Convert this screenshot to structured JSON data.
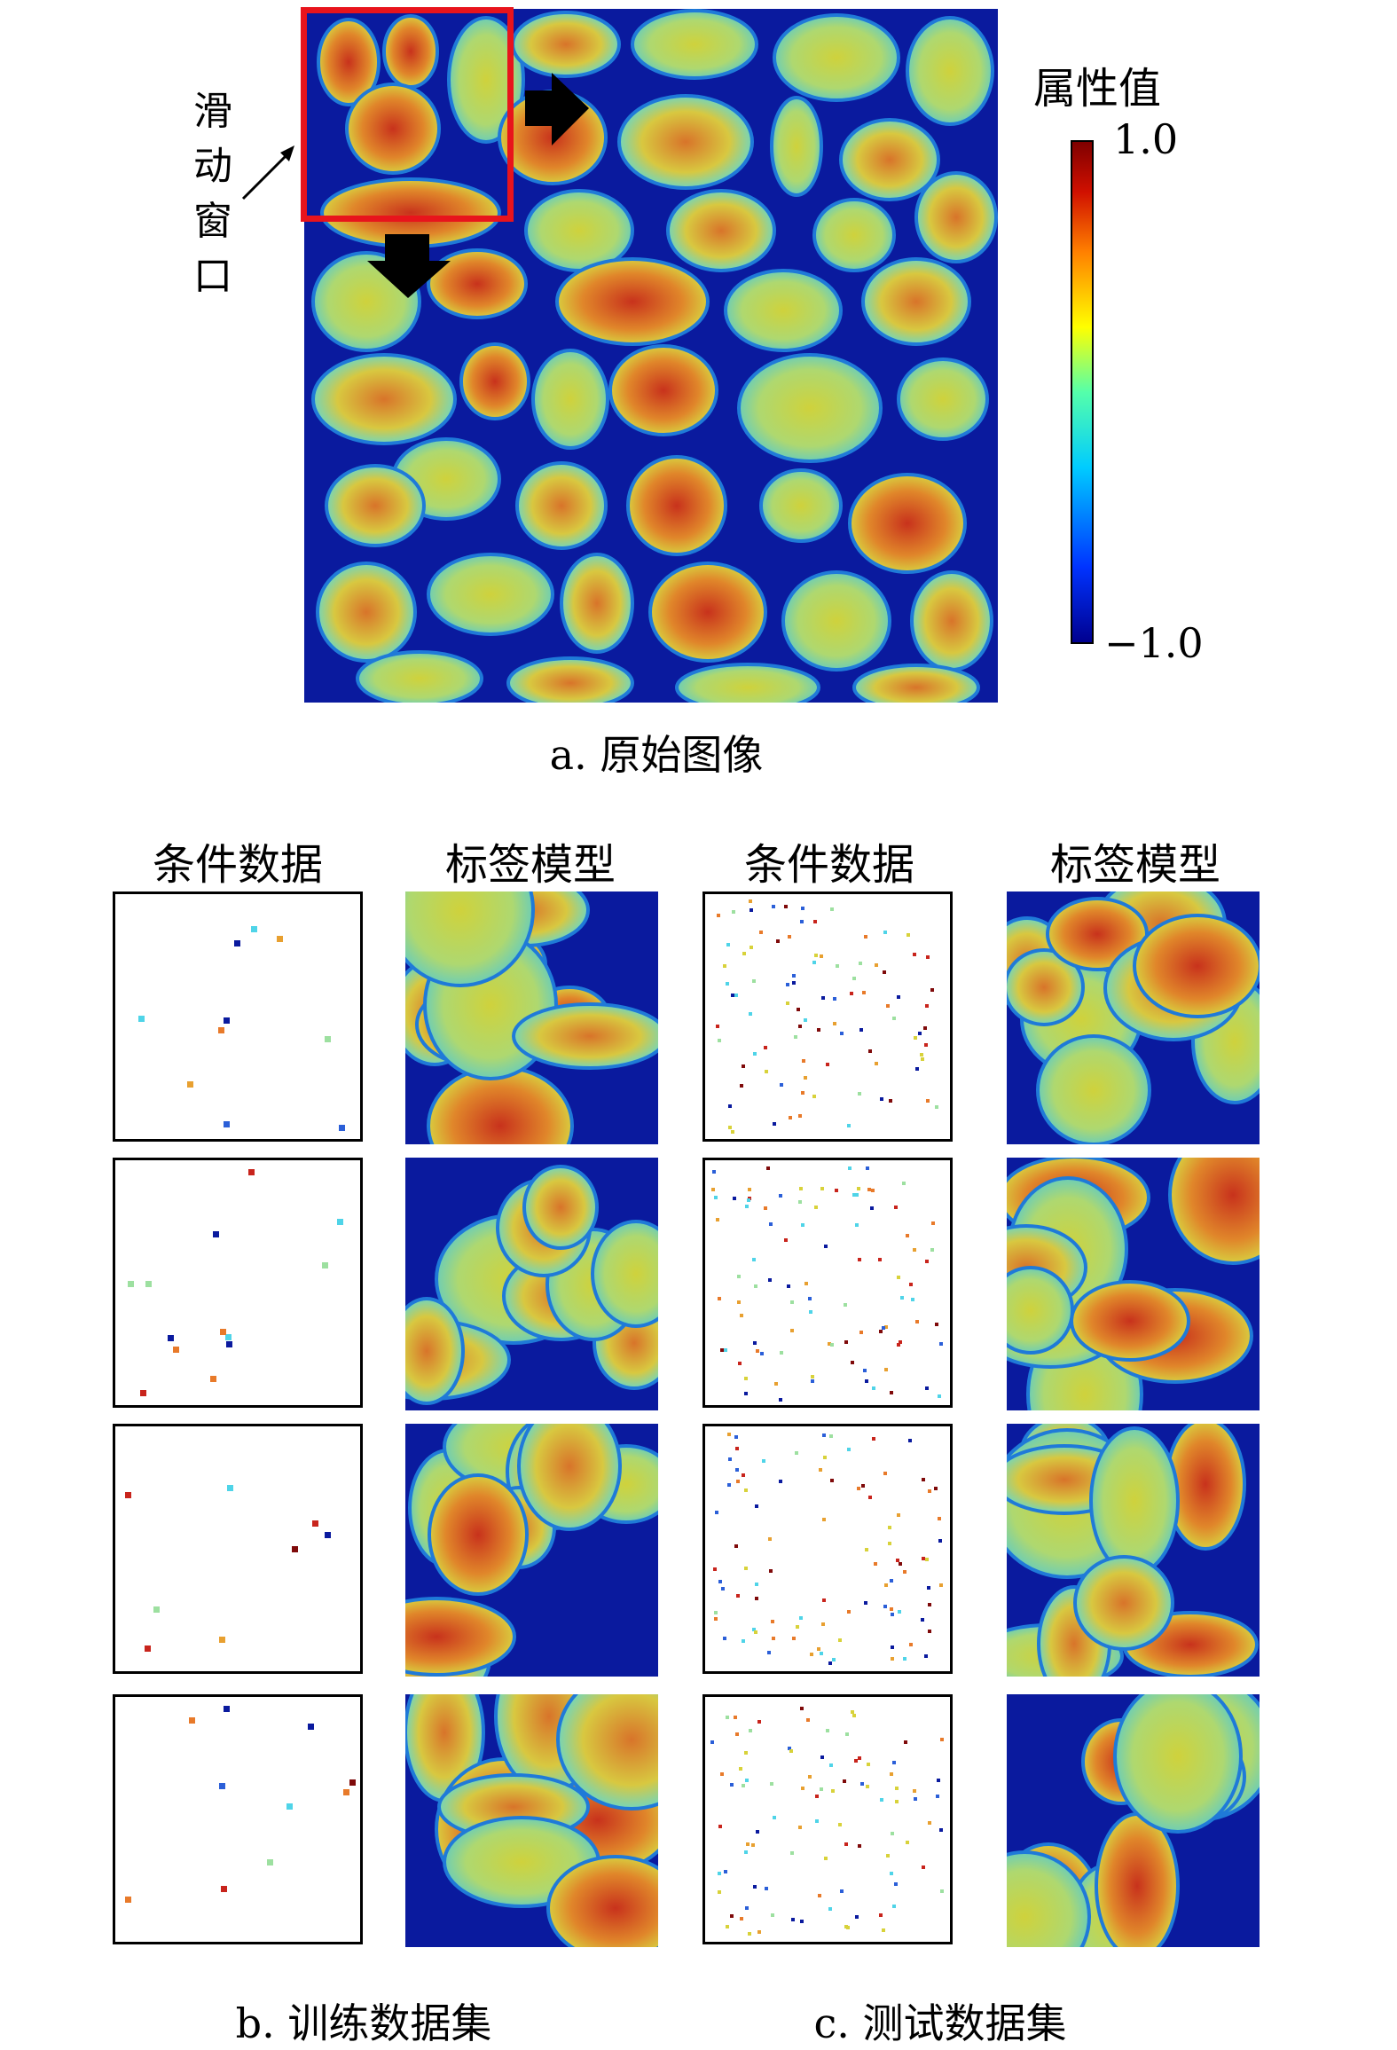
{
  "panel_a": {
    "caption": "a. 原始图像",
    "window_label": [
      "滑",
      "动",
      "窗",
      "口"
    ],
    "colorbar": {
      "title": "属性值",
      "max_label": "1.0",
      "min_label": "−1.0",
      "stops": [
        "#00008f",
        "#0033ff",
        "#00ccff",
        "#55ffaa",
        "#ffff00",
        "#ff8000",
        "#d01000",
        "#7f0000"
      ]
    }
  },
  "panel_b": {
    "caption": "b. 训练数据集",
    "col_headers": [
      "条件数据",
      "标签模型"
    ]
  },
  "panel_c": {
    "caption": "c. 测试数据集",
    "col_headers": [
      "条件数据",
      "标签模型"
    ]
  },
  "palette": {
    "blue": "#0a1a9e",
    "cyan": "#4fd4e8",
    "yellow": "#d8d23a",
    "orange": "#e87a2a",
    "red": "#c8241c",
    "window_red": "#e8141c"
  }
}
